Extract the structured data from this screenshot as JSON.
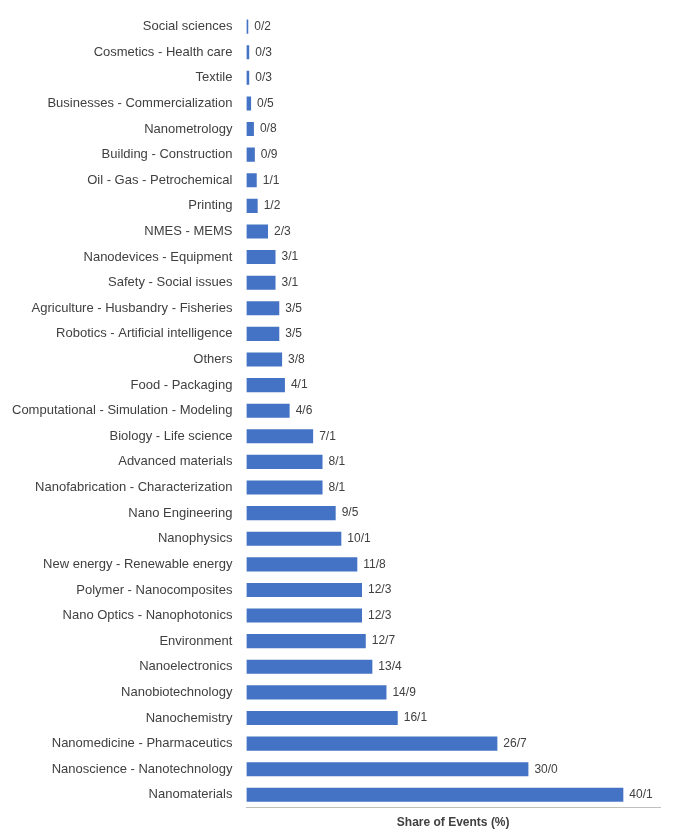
{
  "chart_data": {
    "type": "bar",
    "orientation": "horizontal",
    "x_label": "Share of Events (%)",
    "categories": [
      "Social sciences",
      "Cosmetics - Health care",
      "Textile",
      "Businesses - Commercialization",
      "Nanometrology",
      "Building - Construction",
      "Oil - Gas - Petrochemical",
      "Printing",
      "NMES - MEMS",
      "Nanodevices - Equipment",
      "Safety - Social issues",
      "Agriculture - Husbandry - Fisheries",
      "Robotics - Artificial intelligence",
      "Others",
      "Food - Packaging",
      "Computational - Simulation - Modeling",
      "Biology - Life science",
      "Advanced materials",
      "Nanofabrication - Characterization",
      "Nano Engineering",
      "Nanophysics",
      "New energy - Renewable energy",
      "Polymer - Nanocomposites",
      "Nano Optics - Nanophotonics",
      "Environment",
      "Nanoelectronics",
      "Nanobiotechnology",
      "Nanochemistry",
      "Nanomedicine - Pharmaceutics",
      "Nanoscience - Nanotechnology",
      "Nanomaterials"
    ],
    "values": [
      0.2,
      0.3,
      0.3,
      0.5,
      0.8,
      0.9,
      1.1,
      1.2,
      2.3,
      3.1,
      3.1,
      3.5,
      3.5,
      3.8,
      4.1,
      4.6,
      7.1,
      8.1,
      8.1,
      9.5,
      10.1,
      11.8,
      12.3,
      12.3,
      12.7,
      13.4,
      14.9,
      16.1,
      26.7,
      30.0,
      40.1
    ],
    "value_labels": [
      "0/2",
      "0/3",
      "0/3",
      "0/5",
      "0/8",
      "0/9",
      "1/1",
      "1/2",
      "2/3",
      "3/1",
      "3/1",
      "3/5",
      "3/5",
      "3/8",
      "4/1",
      "4/6",
      "7/1",
      "8/1",
      "8/1",
      "9/5",
      "10/1",
      "11/8",
      "12/3",
      "12/3",
      "12/7",
      "13/4",
      "14/9",
      "16/1",
      "26/7",
      "30/0",
      "40/1"
    ],
    "color": "#4472c4",
    "xlim": [
      0,
      44
    ],
    "grid": false,
    "data_labels": true,
    "tick_labels": "y"
  }
}
